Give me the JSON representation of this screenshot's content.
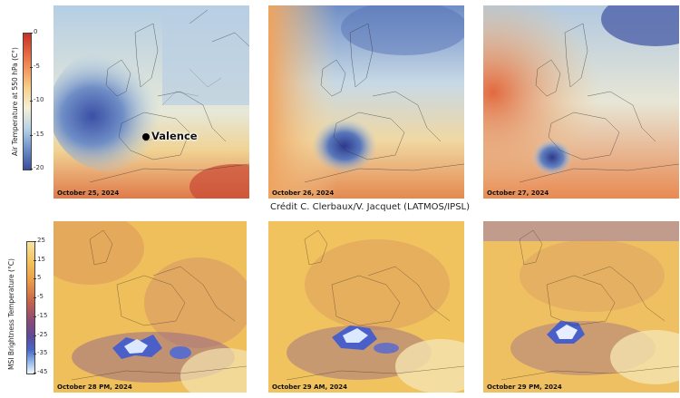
{
  "top_colorbar": {
    "title": "Air Temperature at 550 hPa (C°)",
    "ticks": [
      "0",
      "-5",
      "-10",
      "-15",
      "-20"
    ]
  },
  "bottom_colorbar": {
    "title": "MSI Brightness Temperature (°C)",
    "ticks": [
      "25",
      "15",
      "5",
      "-5",
      "-15",
      "-25",
      "-35",
      "-45"
    ]
  },
  "top_panels": [
    {
      "date": "October 25, 2024"
    },
    {
      "date": "October 26, 2024"
    },
    {
      "date": "October 27, 2024"
    }
  ],
  "bottom_panels": [
    {
      "date": "October 28 PM, 2024"
    },
    {
      "date": "October 29 AM, 2024"
    },
    {
      "date": "October 29 PM, 2024"
    }
  ],
  "marker": {
    "label": "Valence"
  },
  "credit": "Crédit C. Clerbaux/V. Jacquet (LATMOS/IPSL)",
  "colors": {
    "cold": "#3b4fa6",
    "cool": "#b9d3e6",
    "mild": "#f3e3a8",
    "warm": "#e8894f",
    "hot": "#c94733",
    "cloud_ice": "#ffffff",
    "cloud_blue": "#4a60c8",
    "dry": "#f1c45a"
  }
}
